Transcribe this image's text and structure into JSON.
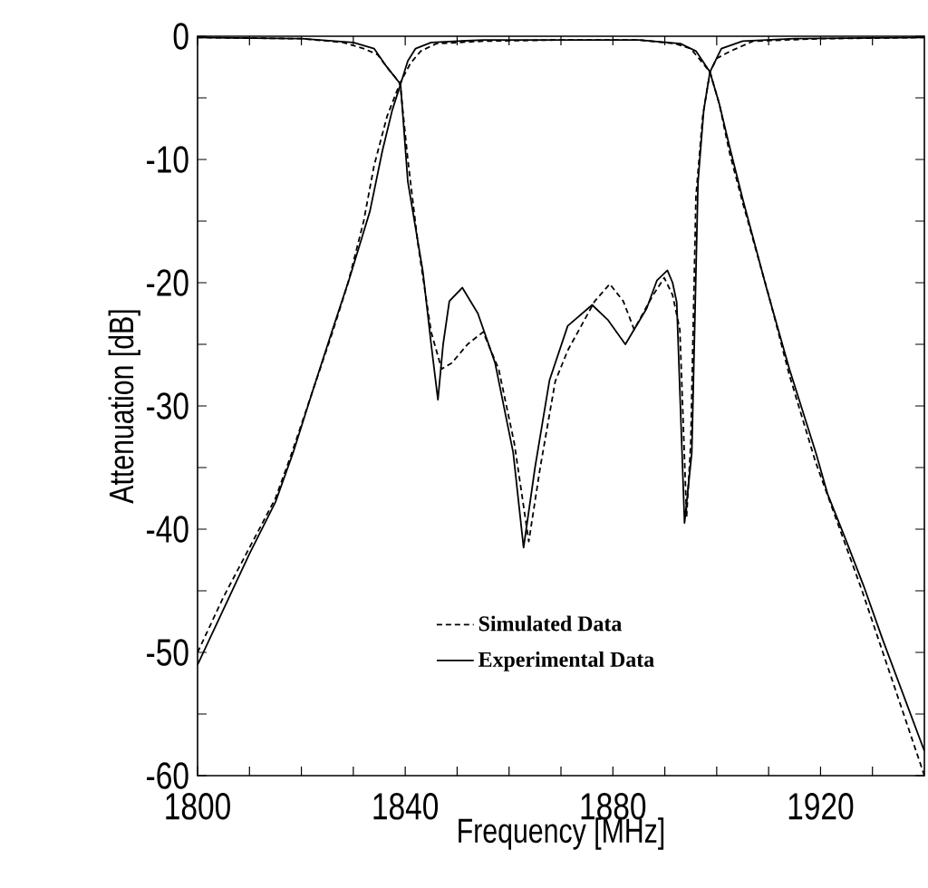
{
  "chart_data": {
    "type": "line",
    "xlabel": "Frequency [MHz]",
    "ylabel": "Attenuation [dB]",
    "xlim": [
      1800,
      1940
    ],
    "ylim": [
      -60,
      0
    ],
    "xticks": [
      1800,
      {
        "value": 1810,
        "label": null
      },
      {
        "value": 1820,
        "label": null
      },
      {
        "value": 1830,
        "label": null
      },
      1840,
      {
        "value": 1850,
        "label": null
      },
      {
        "value": 1860,
        "label": null
      },
      {
        "value": 1870,
        "label": null
      },
      1880,
      {
        "value": 1890,
        "label": null
      },
      {
        "value": 1900,
        "label": null
      },
      {
        "value": 1910,
        "label": null
      },
      1920,
      {
        "value": 1930,
        "label": null
      }
    ],
    "yticks": [
      -60,
      {
        "value": -55,
        "label": null
      },
      -50,
      {
        "value": -45,
        "label": null
      },
      -40,
      {
        "value": -35,
        "label": null
      },
      -30,
      {
        "value": -25,
        "label": null
      },
      -20,
      {
        "value": -15,
        "label": null
      },
      -10,
      {
        "value": -5,
        "label": null
      },
      0
    ],
    "grid": false,
    "legend": "bottom",
    "marker": "none",
    "series": [
      {
        "name": "Simulated Data",
        "color": "#000000",
        "line_style": "dashed",
        "x": [
          1800,
          1805,
          1810,
          1815,
          1818,
          1822,
          1826,
          1829,
          1832,
          1834,
          1836.5,
          1839,
          1841,
          1843,
          1846,
          1855,
          1870,
          1885,
          1892,
          1895,
          1898.7,
          1900.5,
          1902.5,
          1905,
          1910,
          1914,
          1919,
          1922,
          1928,
          1932,
          1936,
          1940
        ],
        "values": [
          -50,
          -45.5,
          -41.5,
          -37.5,
          -34,
          -29,
          -24,
          -20,
          -15,
          -10.5,
          -6.5,
          -3.8,
          -2.2,
          -1.2,
          -0.6,
          -0.4,
          -0.3,
          -0.3,
          -0.6,
          -1,
          -2.9,
          -5.5,
          -9.5,
          -13.5,
          -21,
          -27.5,
          -34.5,
          -38,
          -45,
          -50,
          -55,
          -60
        ]
      },
      {
        "name": "Experimental Data",
        "color": "#000000",
        "line_style": "solid",
        "x": [
          1800,
          1805,
          1810,
          1815,
          1818.4,
          1822,
          1826,
          1829.3,
          1833.2,
          1835.6,
          1837.5,
          1839.1,
          1840.5,
          1842,
          1845,
          1855,
          1870,
          1885,
          1893,
          1896,
          1898.7,
          1900.5,
          1902.5,
          1905,
          1909.7,
          1914,
          1919.1,
          1921.4,
          1925,
          1928.3,
          1932,
          1936,
          1940
        ],
        "values": [
          -51,
          -46.5,
          -42,
          -37.8,
          -33.8,
          -29,
          -23.8,
          -19.6,
          -14.2,
          -9.3,
          -6,
          -3.9,
          -2,
          -1,
          -0.5,
          -0.3,
          -0.3,
          -0.3,
          -0.6,
          -1.2,
          -2.9,
          -5.5,
          -9,
          -13.2,
          -20.6,
          -27,
          -33.8,
          -37.2,
          -41,
          -44.6,
          -49,
          -53.5,
          -58
        ]
      },
      {
        "color": "#000000",
        "line_style": "dashed",
        "x": [
          1800,
          1820,
          1828,
          1832,
          1834.7,
          1837,
          1839,
          1840.5,
          1842.5,
          1845,
          1847,
          1849,
          1852,
          1855,
          1858,
          1861,
          1863.8,
          1866,
          1868.9,
          1871.3,
          1876.5,
          1879.4,
          1882,
          1884.1,
          1887.6,
          1889.9,
          1891.5,
          1892.9,
          1894.2,
          1895,
          1896,
          1897.3,
          1898.7,
          1900,
          1902.7,
          1907,
          1920,
          1940
        ],
        "values": [
          -0.1,
          -0.2,
          -0.5,
          -1,
          -1.5,
          -2.8,
          -3.8,
          -10,
          -17,
          -24,
          -27,
          -26.5,
          -25,
          -24,
          -27,
          -33,
          -41,
          -35,
          -28,
          -25.5,
          -21.5,
          -20.1,
          -21.5,
          -23.8,
          -21.1,
          -19.6,
          -21,
          -23.8,
          -39,
          -33,
          -13,
          -6.5,
          -2.9,
          -1.8,
          -1.2,
          -0.4,
          -0.2,
          -0.1
        ]
      },
      {
        "color": "#000000",
        "line_style": "solid",
        "x": [
          1800,
          1820,
          1830,
          1834,
          1836.3,
          1839.1,
          1840.5,
          1843.4,
          1845,
          1846.3,
          1847.3,
          1848.5,
          1851,
          1854,
          1857.3,
          1860.8,
          1862.8,
          1865,
          1867.8,
          1871.3,
          1876,
          1879,
          1882.4,
          1886.5,
          1888.5,
          1890.5,
          1891.5,
          1892.3,
          1893.8,
          1895.2,
          1896.4,
          1897.5,
          1898.7,
          1900.9,
          1905,
          1915,
          1940
        ],
        "values": [
          -0.1,
          -0.2,
          -0.5,
          -1,
          -2.4,
          -3.9,
          -11.8,
          -19.1,
          -25,
          -29.5,
          -25,
          -21.5,
          -20.4,
          -22.5,
          -26.5,
          -33.8,
          -41.5,
          -35,
          -27.9,
          -23.5,
          -21.8,
          -23,
          -25,
          -22.1,
          -19.8,
          -19,
          -20,
          -21.6,
          -39.5,
          -33.8,
          -11.8,
          -6,
          -2.9,
          -1,
          -0.4,
          -0.2,
          -0.1
        ]
      }
    ]
  }
}
